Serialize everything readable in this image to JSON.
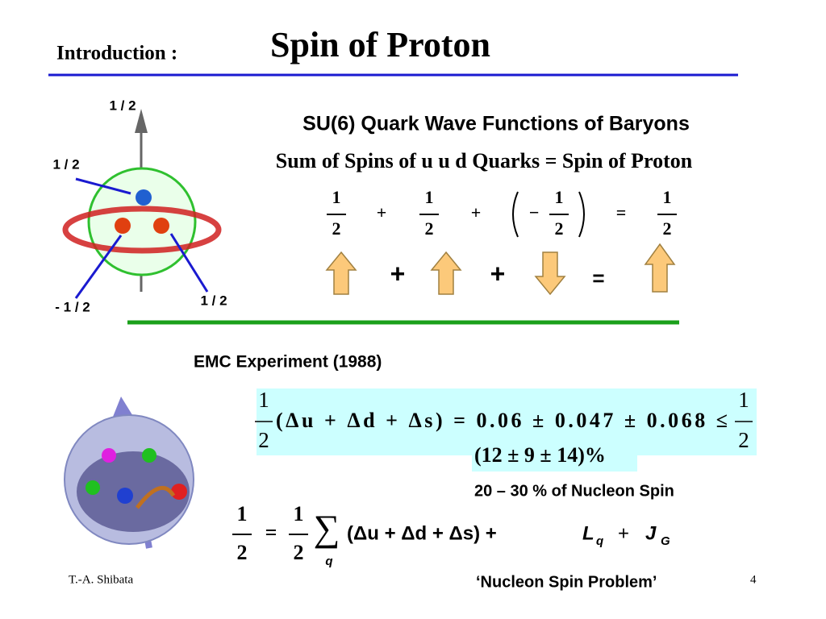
{
  "header": {
    "prefix": "Introduction :",
    "title": "Spin of Proton"
  },
  "figure_labels": [
    "1 / 2",
    "1 / 2",
    "- 1 / 2",
    "1 / 2"
  ],
  "su6": {
    "heading": "SU(6) Quark Wave Functions of Baryons",
    "subheading": "Sum of Spins of  u u d Quarks  =  Spin of Proton",
    "equation": {
      "fractions": [
        {
          "num": "1",
          "den": "2"
        },
        {
          "num": "1",
          "den": "2"
        },
        {
          "num": "1",
          "den": "2"
        },
        {
          "num": "1",
          "den": "2"
        }
      ],
      "operators": [
        "+",
        "+",
        "−",
        "="
      ]
    },
    "arrow_operators": [
      "+",
      "+",
      "="
    ]
  },
  "emc": {
    "heading": "EMC Experiment   (1988)",
    "fraction_left": {
      "num": "1",
      "den": "2"
    },
    "expression": "(Δu + Δd + Δs) = 0.06 ± 0.047 ± 0.068 ≤",
    "fraction_right": {
      "num": "1",
      "den": "2"
    },
    "percent": "(12 ± 9 ± 14)%",
    "note": "20 – 30 % of Nucleon Spin"
  },
  "sum_rule": {
    "fraction_left": {
      "num": "1",
      "den": "2"
    },
    "equals": "=",
    "fraction_sum": {
      "num": "1",
      "den": "2"
    },
    "sigma": "∑",
    "index": "q",
    "terms": "(Δu + Δd + Δs) +",
    "L": "L",
    "L_sub": "q",
    "plus": "+",
    "J": "J",
    "J_sub": "G"
  },
  "footer": {
    "author": "T.-A. Shibata",
    "page": "4",
    "caption": "‘Nucleon Spin Problem’"
  }
}
